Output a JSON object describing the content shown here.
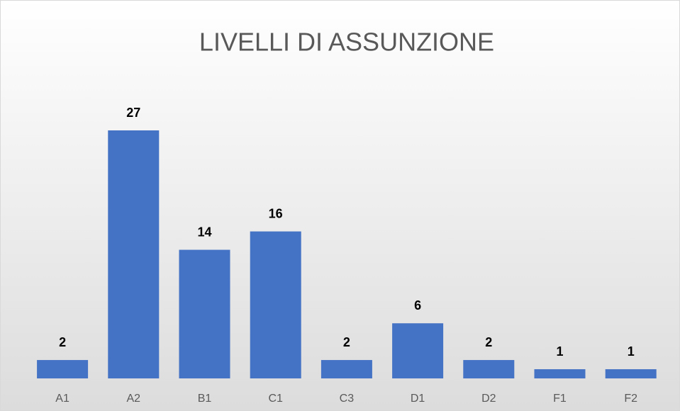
{
  "chart_data": {
    "type": "bar",
    "title": "LIVELLI DI ASSUNZIONE",
    "categories": [
      "A1",
      "A2",
      "B1",
      "C1",
      "C3",
      "D1",
      "D2",
      "F1",
      "F2"
    ],
    "values": [
      2,
      27,
      14,
      16,
      2,
      6,
      2,
      1,
      1
    ],
    "color": "#4472c4"
  }
}
